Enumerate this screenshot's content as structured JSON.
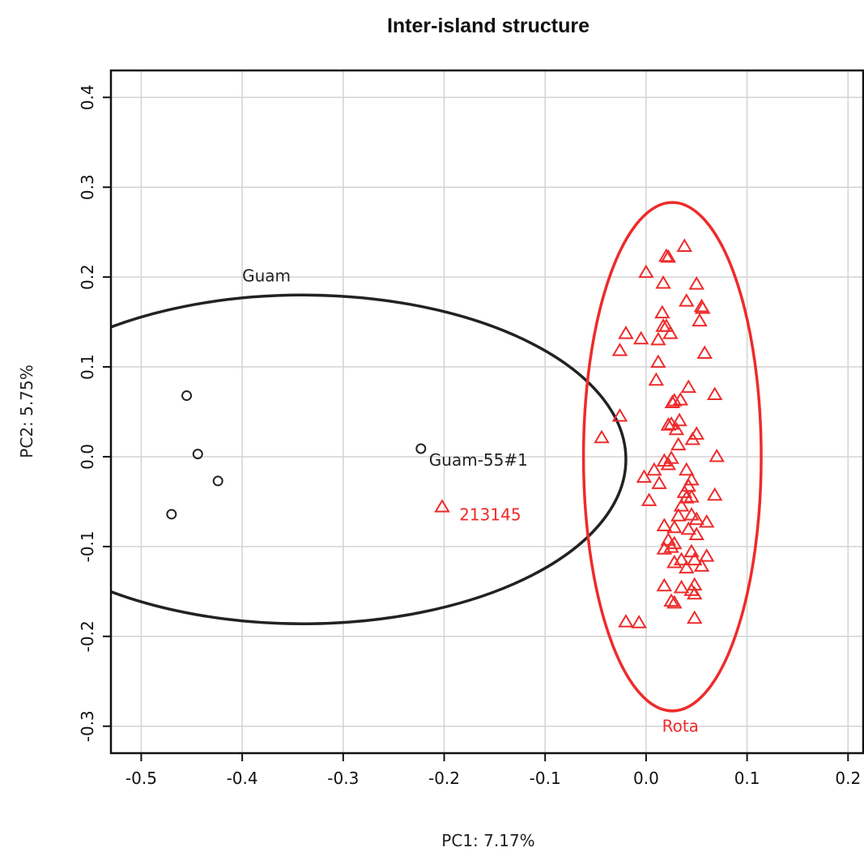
{
  "chart_data": {
    "type": "scatter",
    "title": "Inter-island structure",
    "xlabel": "PC1: 7.17%",
    "ylabel": "PC2: 5.75%",
    "xlim": [
      -0.53,
      0.215
    ],
    "ylim": [
      -0.33,
      0.43
    ],
    "x_ticks": [
      -0.5,
      -0.4,
      -0.3,
      -0.2,
      -0.1,
      0.0,
      0.1,
      0.2
    ],
    "y_ticks": [
      -0.3,
      -0.2,
      -0.1,
      0.0,
      0.1,
      0.2,
      0.3,
      0.4
    ],
    "x_tick_labels": [
      "-0.5",
      "-0.4",
      "-0.3",
      "-0.2",
      "-0.1",
      "0.0",
      "0.1",
      "0.2"
    ],
    "y_tick_labels": [
      "-0.3",
      "-0.2",
      "-0.1",
      "0.0",
      "0.1",
      "0.2",
      "0.3",
      "0.4"
    ],
    "grid": true,
    "series": [
      {
        "name": "Guam",
        "marker": "circle",
        "color": "#222222",
        "points": [
          [
            -0.455,
            0.068
          ],
          [
            -0.444,
            0.003
          ],
          [
            -0.424,
            -0.027
          ],
          [
            -0.47,
            -0.064
          ],
          [
            -0.223,
            0.009
          ]
        ]
      },
      {
        "name": "Rota",
        "marker": "triangle",
        "color": "#ee2b2b",
        "points": [
          [
            0.038,
            0.234
          ],
          [
            0.02,
            0.223
          ],
          [
            0.022,
            0.222
          ],
          [
            0.0,
            0.205
          ],
          [
            0.05,
            0.192
          ],
          [
            0.017,
            0.193
          ],
          [
            0.04,
            0.173
          ],
          [
            0.055,
            0.167
          ],
          [
            0.056,
            0.165
          ],
          [
            0.016,
            0.16
          ],
          [
            0.053,
            0.151
          ],
          [
            0.017,
            0.145
          ],
          [
            0.02,
            0.145
          ],
          [
            0.024,
            0.137
          ],
          [
            -0.02,
            0.137
          ],
          [
            -0.005,
            0.131
          ],
          [
            0.012,
            0.13
          ],
          [
            -0.026,
            0.118
          ],
          [
            0.058,
            0.115
          ],
          [
            0.012,
            0.105
          ],
          [
            0.01,
            0.085
          ],
          [
            0.042,
            0.077
          ],
          [
            0.068,
            0.069
          ],
          [
            0.034,
            0.063
          ],
          [
            0.028,
            0.062
          ],
          [
            0.026,
            0.06
          ],
          [
            0.033,
            0.04
          ],
          [
            -0.026,
            0.045
          ],
          [
            0.022,
            0.035
          ],
          [
            0.025,
            0.036
          ],
          [
            0.03,
            0.03
          ],
          [
            0.05,
            0.025
          ],
          [
            0.046,
            0.019
          ],
          [
            -0.044,
            0.021
          ],
          [
            0.032,
            0.013
          ],
          [
            0.07,
            0.0
          ],
          [
            0.025,
            -0.002
          ],
          [
            0.018,
            -0.005
          ],
          [
            0.022,
            -0.009
          ],
          [
            0.008,
            -0.015
          ],
          [
            0.04,
            -0.015
          ],
          [
            -0.002,
            -0.023
          ],
          [
            0.045,
            -0.026
          ],
          [
            0.013,
            -0.03
          ],
          [
            0.042,
            -0.033
          ],
          [
            0.038,
            -0.04
          ],
          [
            0.045,
            -0.045
          ],
          [
            0.068,
            -0.043
          ],
          [
            0.04,
            -0.046
          ],
          [
            0.003,
            -0.049
          ],
          [
            0.035,
            -0.055
          ],
          [
            0.045,
            -0.065
          ],
          [
            0.032,
            -0.066
          ],
          [
            0.05,
            -0.07
          ],
          [
            0.06,
            -0.073
          ],
          [
            0.018,
            -0.077
          ],
          [
            0.028,
            -0.079
          ],
          [
            0.042,
            -0.081
          ],
          [
            0.05,
            -0.087
          ],
          [
            0.022,
            -0.093
          ],
          [
            0.028,
            -0.097
          ],
          [
            0.025,
            -0.101
          ],
          [
            0.018,
            -0.103
          ],
          [
            0.045,
            -0.106
          ],
          [
            0.06,
            -0.111
          ],
          [
            0.035,
            -0.115
          ],
          [
            0.048,
            -0.115
          ],
          [
            0.028,
            -0.118
          ],
          [
            0.055,
            -0.122
          ],
          [
            0.04,
            -0.124
          ],
          [
            0.018,
            -0.144
          ],
          [
            0.048,
            -0.143
          ],
          [
            0.035,
            -0.146
          ],
          [
            0.045,
            -0.149
          ],
          [
            0.048,
            -0.153
          ],
          [
            0.025,
            -0.161
          ],
          [
            0.028,
            -0.163
          ],
          [
            -0.02,
            -0.184
          ],
          [
            -0.007,
            -0.185
          ],
          [
            0.048,
            -0.18
          ]
        ]
      }
    ],
    "outlier_points": [
      {
        "label": "213145",
        "color": "#ee2b2b",
        "marker": "triangle",
        "x": -0.202,
        "y": -0.056
      }
    ],
    "ellipses": [
      {
        "label": "Guam",
        "color": "#222222",
        "center": [
          -0.34,
          -0.003
        ],
        "semi_x": 0.32,
        "semi_y": 0.183
      },
      {
        "label": "Rota",
        "color": "#ee2b2b",
        "center": [
          0.026,
          0.0
        ],
        "semi_x": 0.088,
        "semi_y": 0.283
      }
    ],
    "annotations": [
      {
        "text": "Guam",
        "x": -0.4,
        "y": 0.195,
        "color": "#222222",
        "anchor": "start"
      },
      {
        "text": "Guam-55#1",
        "x": -0.215,
        "y": -0.01,
        "color": "#222222",
        "anchor": "start"
      },
      {
        "text": "213145",
        "x": -0.185,
        "y": -0.071,
        "color": "#ee2b2b",
        "anchor": "start"
      },
      {
        "text": "Rota",
        "x": 0.034,
        "y": -0.306,
        "color": "#ee2b2b",
        "anchor": "middle"
      }
    ]
  }
}
